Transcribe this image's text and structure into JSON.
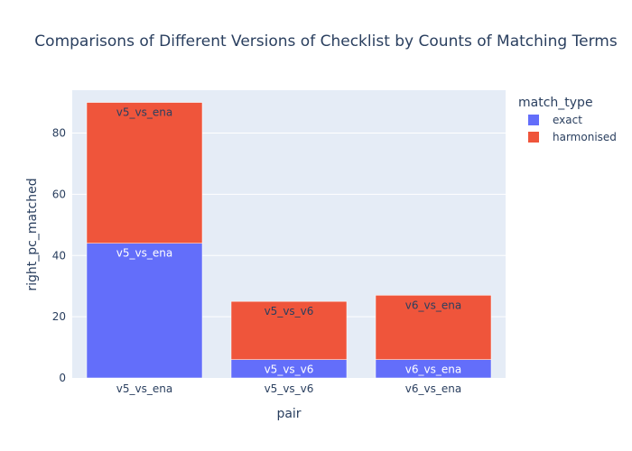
{
  "chart_data": {
    "type": "bar",
    "stacked": true,
    "title": "Comparisons of Different Versions of Checklist by Counts of Matching Terms",
    "xlabel": "pair",
    "ylabel": "right_pc_matched",
    "categories": [
      "v5_vs_ena",
      "v5_vs_v6",
      "v6_vs_ena"
    ],
    "series": [
      {
        "name": "exact",
        "color": "#636efa",
        "label_color": "#ffffff",
        "values": [
          44,
          6,
          6
        ]
      },
      {
        "name": "harmonised",
        "color": "#ef553b",
        "label_color": "#2a3f5f",
        "values": [
          46,
          19,
          21
        ]
      }
    ],
    "ylim": [
      0,
      94
    ],
    "yticks": [
      0,
      20,
      40,
      60,
      80
    ],
    "grid": true,
    "legend": {
      "title": "match_type",
      "placement": "top-right"
    },
    "plot_bgcolor": "#e5ecf6"
  }
}
